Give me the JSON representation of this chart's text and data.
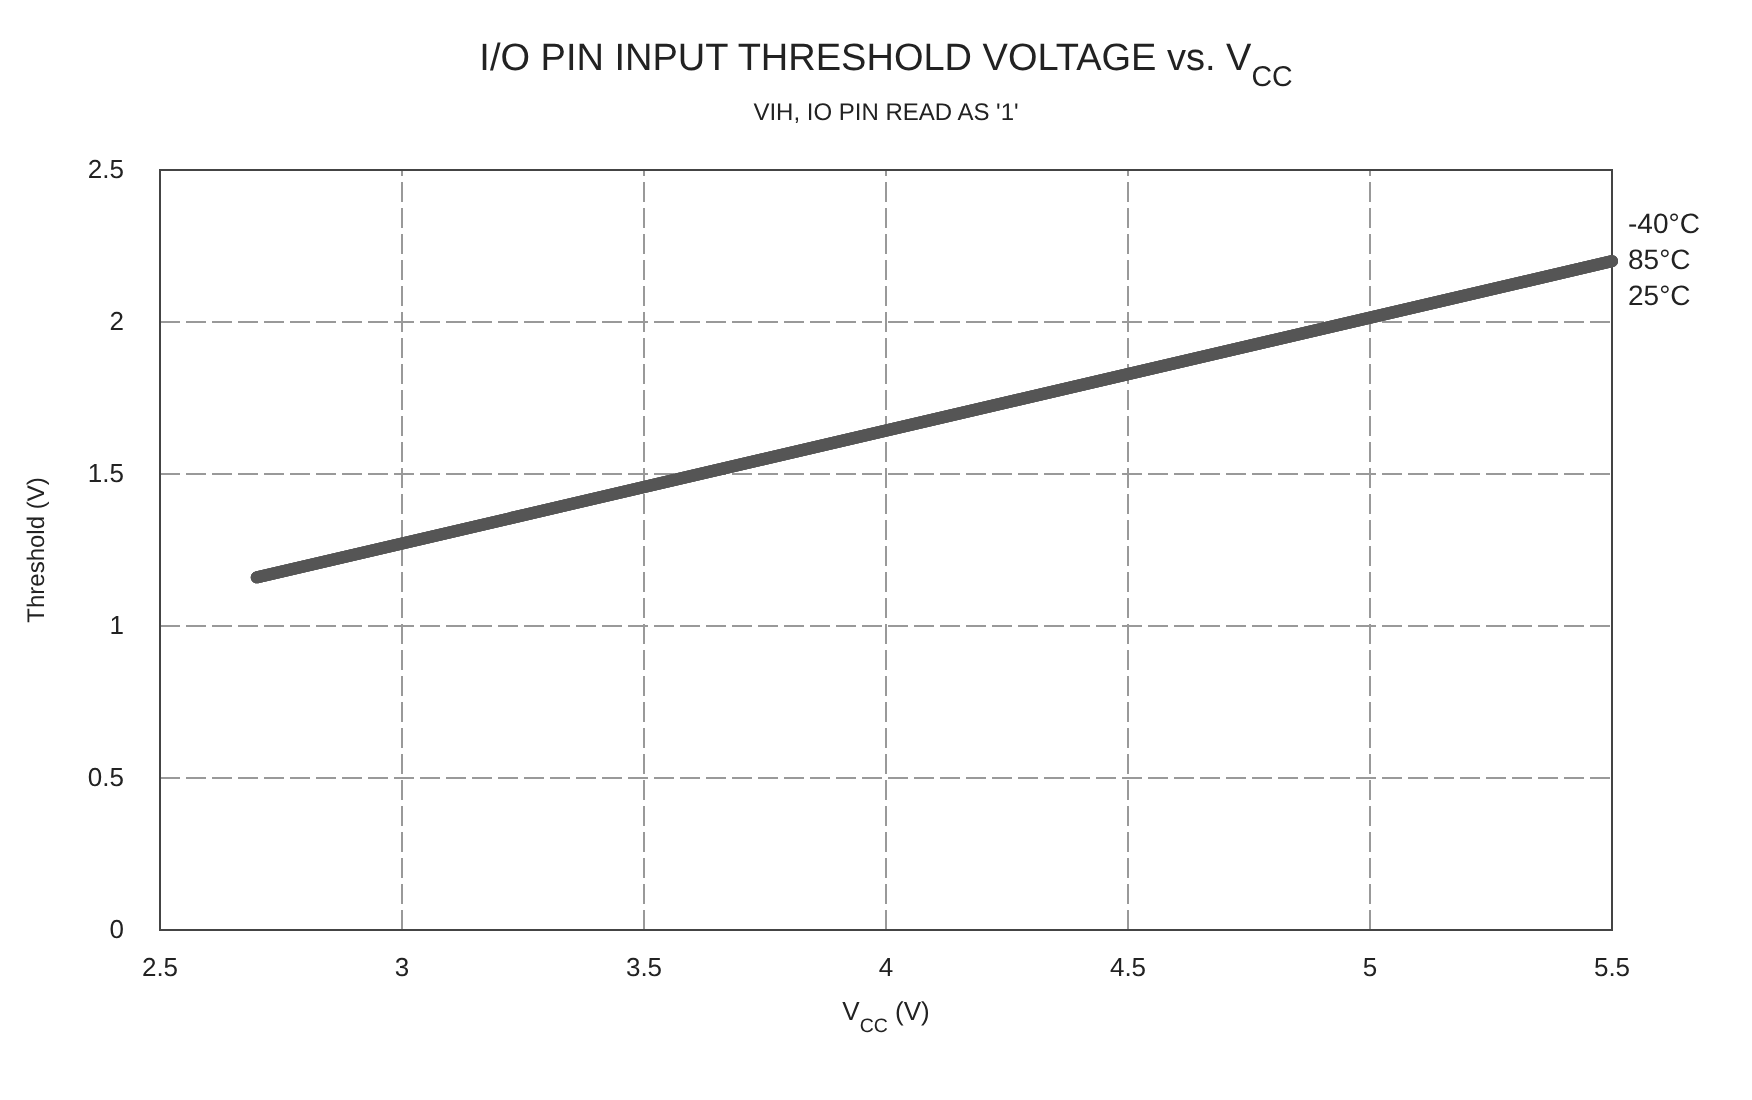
{
  "chart_data": {
    "type": "line",
    "title": "I/O PIN INPUT THRESHOLD VOLTAGE vs. V$_{CC}$",
    "subtitle": "VIH, IO PIN READ AS '1'",
    "xlabel": "V$_{CC}$ (V)",
    "ylabel": "Threshold (V)",
    "x": [
      2.7,
      5.5
    ],
    "series": [
      {
        "name": "-40°C",
        "color": "#555555",
        "values": [
          1.16,
          2.2
        ]
      },
      {
        "name": "85°C",
        "color": "#555555",
        "values": [
          1.16,
          2.2
        ]
      },
      {
        "name": "25°C",
        "color": "#555555",
        "values": [
          1.16,
          2.2
        ]
      }
    ],
    "xlim": [
      2.5,
      5.5
    ],
    "xticks": [
      2.5,
      3,
      3.5,
      4,
      4.5,
      5,
      5.5
    ],
    "ylim": [
      0,
      2.5
    ],
    "yticks": [
      0,
      0.5,
      1,
      1.5,
      2,
      2.5
    ],
    "grid": true,
    "marker": "none",
    "line_style": "solid"
  }
}
